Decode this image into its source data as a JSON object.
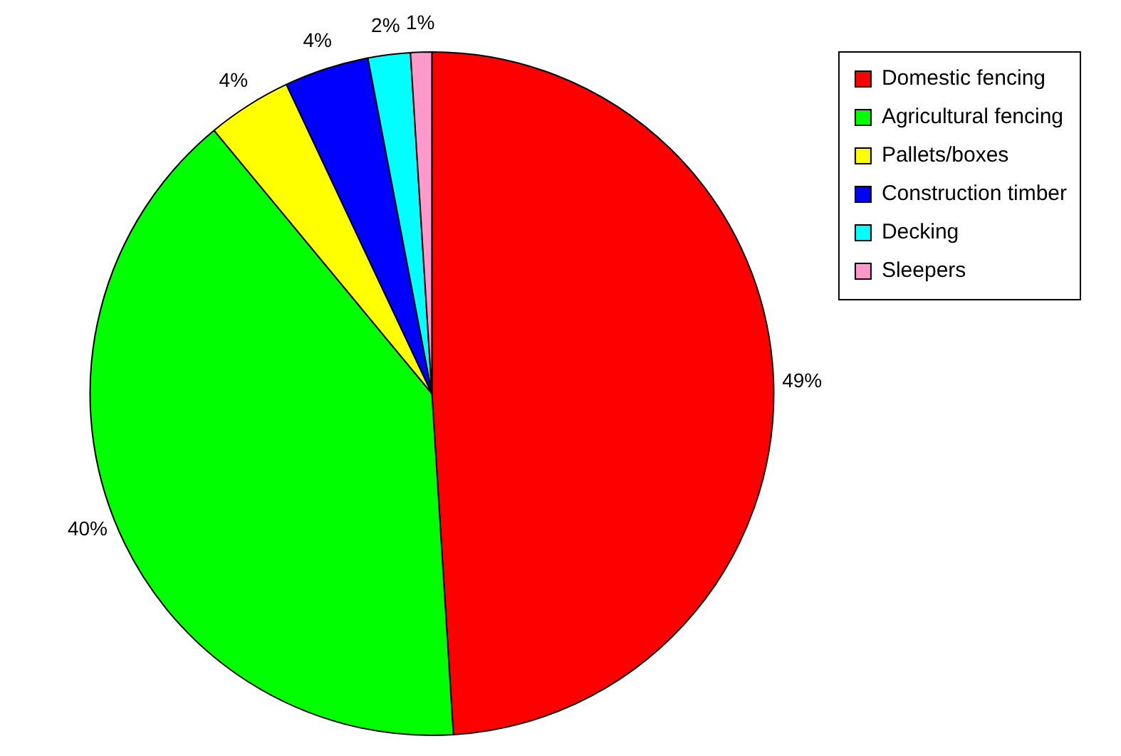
{
  "chart_data": {
    "type": "pie",
    "categories": [
      "Domestic fencing",
      "Agricultural fencing",
      "Pallets/boxes",
      "Construction timber",
      "Decking",
      "Sleepers"
    ],
    "values": [
      49,
      40,
      4,
      4,
      2,
      1
    ],
    "colors": [
      "#ff0000",
      "#00ff00",
      "#ffff00",
      "#0000ff",
      "#00ffff",
      "#ff99cc"
    ],
    "value_labels": [
      "49%",
      "40%",
      "4%",
      "4%",
      "2%",
      "1%"
    ],
    "legend": "top right"
  }
}
